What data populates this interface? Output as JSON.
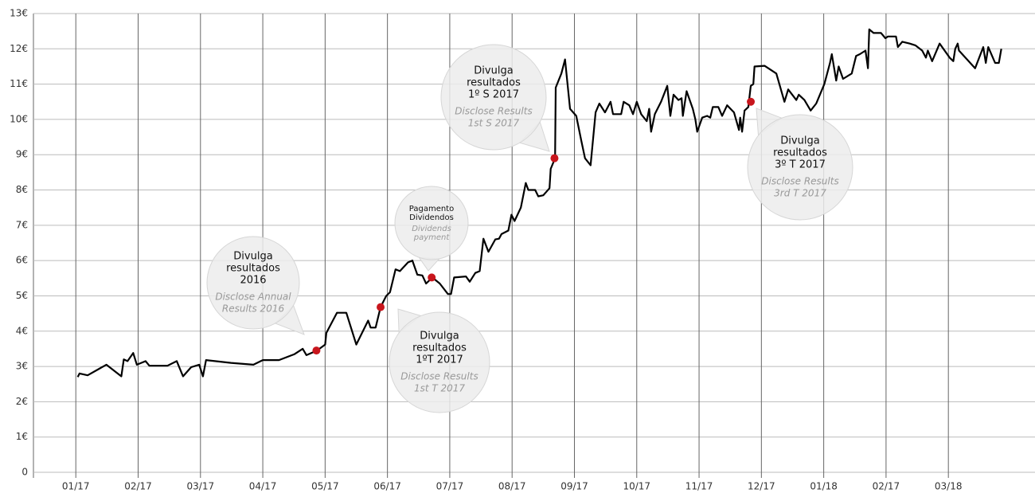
{
  "chart_data": {
    "type": "line",
    "xlim": [
      -0.68,
      15.39
    ],
    "xticks": [
      {
        "value": 0,
        "label": "01/17"
      },
      {
        "value": 1,
        "label": "02/17"
      },
      {
        "value": 2,
        "label": "03/17"
      },
      {
        "value": 3,
        "label": "04/17"
      },
      {
        "value": 4,
        "label": "05/17"
      },
      {
        "value": 5,
        "label": "06/17"
      },
      {
        "value": 6,
        "label": "07/17"
      },
      {
        "value": 7,
        "label": "08/17"
      },
      {
        "value": 8,
        "label": "09/17"
      },
      {
        "value": 9,
        "label": "10/17"
      },
      {
        "value": 10,
        "label": "11/17"
      },
      {
        "value": 11,
        "label": "12/17"
      },
      {
        "value": 12,
        "label": "01/18"
      },
      {
        "value": 13,
        "label": "02/17"
      },
      {
        "value": 14,
        "label": "03/18"
      }
    ],
    "ylim": [
      0,
      13
    ],
    "yticks": [
      0,
      {
        "value": 1,
        "label": "1€"
      },
      {
        "value": 2,
        "label": "2€"
      },
      {
        "value": 3,
        "label": "3€"
      },
      {
        "value": 4,
        "label": "4€"
      },
      {
        "value": 5,
        "label": "5€"
      },
      {
        "value": 6,
        "label": "6€"
      },
      {
        "value": 7,
        "label": "7€"
      },
      {
        "value": 8,
        "label": "8€"
      },
      {
        "value": 9,
        "label": "9€"
      },
      {
        "value": 10,
        "label": "10€"
      },
      {
        "value": 11,
        "label": "11€"
      },
      {
        "value": 12,
        "label": "12€"
      },
      {
        "value": 13,
        "label": "13€"
      }
    ],
    "grid": true,
    "series": [
      {
        "color": "#000000",
        "x": [
          0.03,
          0.06,
          0.19,
          0.49,
          0.73,
          0.77,
          0.83,
          0.92,
          0.98,
          1.12,
          1.18,
          1.47,
          1.62,
          1.72,
          1.85,
          1.98,
          2.04,
          2.09,
          2.49,
          2.85,
          3.0,
          3.26,
          3.51,
          3.64,
          3.7,
          3.87,
          4.0,
          4.02,
          4.19,
          4.34,
          4.5,
          4.69,
          4.73,
          4.81,
          4.89,
          4.98,
          5.04,
          5.13,
          5.2,
          5.33,
          5.4,
          5.48,
          5.56,
          5.62,
          5.72,
          5.84,
          5.97,
          6.02,
          6.07,
          6.26,
          6.32,
          6.41,
          6.48,
          6.54,
          6.62,
          6.73,
          6.79,
          6.83,
          6.94,
          6.99,
          7.04,
          7.14,
          7.22,
          7.26,
          7.37,
          7.42,
          7.5,
          7.6,
          7.62,
          7.69,
          7.7,
          7.79,
          7.85,
          7.93,
          8.03,
          8.11,
          8.17,
          8.26,
          8.34,
          8.4,
          8.49,
          8.58,
          8.62,
          8.75,
          8.79,
          8.88,
          8.94,
          9.0,
          9.07,
          9.16,
          9.2,
          9.23,
          9.29,
          9.39,
          9.49,
          9.54,
          9.59,
          9.67,
          9.72,
          9.74,
          9.8,
          9.9,
          9.94,
          9.97,
          10.05,
          10.13,
          10.18,
          10.22,
          10.31,
          10.37,
          10.45,
          10.56,
          10.64,
          10.66,
          10.69,
          10.73,
          10.79,
          10.83,
          10.87,
          10.89,
          11.05,
          11.24,
          11.37,
          11.43,
          11.56,
          11.6,
          11.69,
          11.79,
          11.88,
          12.01,
          12.1,
          12.13,
          12.2,
          12.24,
          12.31,
          12.45,
          12.52,
          12.58,
          12.67,
          12.71,
          12.73,
          12.8,
          12.92,
          12.99,
          13.03,
          13.16,
          13.19,
          13.26,
          13.38,
          13.47,
          13.58,
          13.64,
          13.67,
          13.74,
          13.86,
          14.02,
          14.08,
          14.11,
          14.15,
          14.17,
          14.43,
          14.56,
          14.6,
          14.64,
          14.75,
          14.81,
          14.85
        ],
        "values": [
          2.7,
          2.8,
          2.75,
          3.05,
          2.72,
          3.2,
          3.15,
          3.38,
          3.05,
          3.15,
          3.02,
          3.02,
          3.15,
          2.72,
          2.98,
          3.05,
          2.72,
          3.18,
          3.1,
          3.05,
          3.18,
          3.18,
          3.35,
          3.5,
          3.32,
          3.45,
          3.62,
          3.95,
          4.52,
          4.52,
          3.62,
          4.3,
          4.1,
          4.1,
          4.68,
          5.0,
          5.1,
          5.75,
          5.7,
          5.95,
          6.0,
          5.6,
          5.58,
          5.35,
          5.52,
          5.35,
          5.05,
          5.05,
          5.52,
          5.55,
          5.4,
          5.65,
          5.7,
          6.62,
          6.25,
          6.6,
          6.62,
          6.75,
          6.85,
          7.3,
          7.12,
          7.5,
          8.2,
          8.0,
          8.0,
          7.82,
          7.85,
          8.05,
          8.6,
          8.9,
          10.9,
          11.3,
          11.7,
          10.3,
          10.1,
          9.4,
          8.9,
          8.7,
          10.2,
          10.45,
          10.2,
          10.5,
          10.15,
          10.15,
          10.5,
          10.4,
          10.15,
          10.5,
          10.15,
          9.95,
          10.3,
          9.65,
          10.15,
          10.5,
          10.95,
          10.1,
          10.7,
          10.55,
          10.6,
          10.1,
          10.8,
          10.3,
          10.0,
          9.65,
          10.05,
          10.1,
          10.05,
          10.35,
          10.35,
          10.1,
          10.4,
          10.2,
          9.7,
          10.05,
          9.65,
          10.25,
          10.35,
          10.95,
          11.0,
          11.5,
          11.52,
          11.3,
          10.5,
          10.85,
          10.55,
          10.7,
          10.55,
          10.25,
          10.45,
          11.0,
          11.6,
          11.85,
          11.1,
          11.5,
          11.15,
          11.3,
          11.8,
          11.85,
          11.95,
          11.45,
          12.55,
          12.45,
          12.45,
          12.3,
          12.35,
          12.35,
          12.05,
          12.2,
          12.15,
          12.1,
          11.95,
          11.75,
          11.95,
          11.65,
          12.15,
          11.75,
          11.65,
          12.0,
          12.15,
          11.95,
          11.45,
          12.05,
          11.6,
          12.05,
          11.6,
          11.6,
          12.0
        ]
      }
    ],
    "events": {
      "color": "#c8161d",
      "x": [
        3.86,
        4.89,
        5.71,
        7.68,
        10.83
      ],
      "values": [
        3.45,
        4.68,
        5.52,
        8.9,
        10.5
      ]
    },
    "annotations": [
      {
        "text": [
          "Divulga",
          "resultados",
          "2016"
        ],
        "translation": [
          "Disclose Annual",
          "Results 2016"
        ]
      },
      {
        "text": [
          "Divulga",
          "resultados",
          "1ºT 2017"
        ],
        "translation": [
          "Disclose Results",
          "1st T 2017"
        ]
      },
      {
        "text": [
          "Pagamento",
          "Dividendos"
        ],
        "translation": [
          "Dividends",
          "payment"
        ]
      },
      {
        "text": [
          "Divulga",
          "resultados",
          "1º S 2017"
        ],
        "translation": [
          "Disclose Results",
          "1st S 2017"
        ]
      },
      {
        "text": [
          "Divulga",
          "resultados",
          "3º T 2017"
        ],
        "translation": [
          "Disclose Results",
          "3rd T 2017"
        ]
      }
    ]
  }
}
